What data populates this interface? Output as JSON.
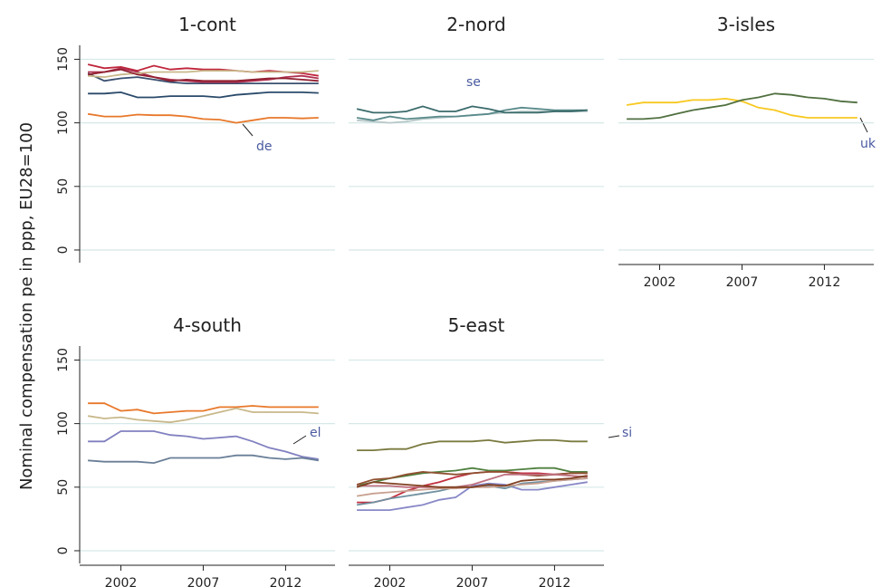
{
  "chart_data": [
    {
      "type": "line",
      "title": "1-cont",
      "ylabel": "Nominal compensation pe in ppp, EU28=100",
      "yaxis": true,
      "x": [
        2000,
        2001,
        2002,
        2003,
        2004,
        2005,
        2006,
        2007,
        2008,
        2009,
        2010,
        2011,
        2012,
        2013,
        2014
      ],
      "xlim": [
        1999.5,
        2015
      ],
      "ylim": [
        -10,
        161
      ],
      "yticks": [
        0,
        50,
        100,
        150
      ],
      "grid": true,
      "series": [
        {
          "name": "de",
          "color": "#e8782a",
          "values": [
            107,
            105,
            105,
            106.5,
            106,
            106,
            105,
            103,
            102.5,
            100,
            102,
            104,
            104,
            103.5,
            104
          ]
        },
        {
          "color": "#2a4a6a",
          "values": [
            123,
            123,
            124,
            120,
            120,
            121,
            121,
            121,
            120,
            122,
            123,
            124,
            124,
            124,
            123.5
          ]
        },
        {
          "color": "#3a5070",
          "values": [
            139,
            133,
            135,
            136,
            134,
            132,
            131,
            131,
            131,
            131,
            131,
            131,
            131,
            131,
            131
          ]
        },
        {
          "color": "#c0263c",
          "values": [
            146,
            143,
            144,
            141,
            145,
            142,
            143,
            142,
            142,
            141,
            140,
            141,
            140,
            139,
            137
          ]
        },
        {
          "color": "#b03050",
          "values": [
            140,
            140,
            143,
            140,
            136,
            134,
            133,
            132,
            132,
            132,
            133,
            134,
            136,
            137,
            135
          ]
        },
        {
          "color": "#c8b88a",
          "values": [
            137,
            136,
            138,
            139,
            140,
            140,
            140,
            141,
            141,
            141,
            140,
            140,
            140,
            140,
            141
          ]
        },
        {
          "color": "#902030",
          "values": [
            138,
            140,
            142,
            138,
            136,
            133,
            134,
            133,
            133,
            133,
            134,
            135,
            135,
            134,
            133
          ]
        }
      ]
    },
    {
      "type": "line",
      "title": "2-nord",
      "yaxis": false,
      "x": [
        2000,
        2001,
        2002,
        2003,
        2004,
        2005,
        2006,
        2007,
        2008,
        2009,
        2010,
        2011,
        2012,
        2013,
        2014
      ],
      "xlim": [
        1999.5,
        2015
      ],
      "ylim": [
        -10,
        161
      ],
      "yticks": [
        0,
        50,
        100,
        150
      ],
      "grid": true,
      "series": [
        {
          "color": "#b8c8c8",
          "values": [
            102,
            101,
            100,
            101,
            103,
            104,
            105,
            106,
            107,
            108,
            109,
            109,
            109,
            109,
            109
          ]
        },
        {
          "color": "#5a8a8a",
          "values": [
            104,
            102,
            105,
            103,
            104,
            105,
            105,
            106,
            107,
            110,
            112,
            111,
            110,
            110,
            110
          ]
        },
        {
          "name": "se",
          "color": "#3a6a6a",
          "values": [
            111,
            108,
            108,
            109,
            113,
            109,
            109,
            113,
            111,
            108,
            108,
            108,
            109,
            109,
            110
          ]
        }
      ]
    },
    {
      "type": "line",
      "title": "3-isles",
      "yaxis": false,
      "x": [
        2000,
        2001,
        2002,
        2003,
        2004,
        2005,
        2006,
        2007,
        2008,
        2009,
        2010,
        2011,
        2012,
        2013,
        2014
      ],
      "xlim": [
        1999.5,
        2015
      ],
      "ylim": [
        -10,
        161
      ],
      "yticks": [
        0,
        50,
        100,
        150
      ],
      "xticks": [
        2002,
        2007,
        2012
      ],
      "grid": true,
      "series": [
        {
          "name": "uk",
          "color": "#f8c820",
          "values": [
            114,
            116,
            116,
            116,
            118,
            118,
            119,
            117,
            112,
            110,
            106,
            104,
            104,
            104,
            104
          ]
        },
        {
          "color": "#507040",
          "values": [
            103,
            103,
            104,
            107,
            110,
            112,
            114,
            118,
            120,
            123,
            122,
            120,
            119,
            117,
            116
          ]
        }
      ]
    },
    {
      "type": "line",
      "title": "4-south",
      "yaxis": true,
      "x": [
        2000,
        2001,
        2002,
        2003,
        2004,
        2005,
        2006,
        2007,
        2008,
        2009,
        2010,
        2011,
        2012,
        2013,
        2014
      ],
      "xlim": [
        1999.5,
        2015
      ],
      "ylim": [
        -10,
        161
      ],
      "yticks": [
        0,
        50,
        100,
        150
      ],
      "xticks": [
        2002,
        2007,
        2012
      ],
      "grid": true,
      "series": [
        {
          "color": "#e8782a",
          "values": [
            116,
            116,
            110,
            111,
            108,
            109,
            110,
            110,
            113,
            113,
            114,
            113,
            113,
            113,
            113
          ]
        },
        {
          "color": "#c8b88a",
          "values": [
            106,
            104,
            105,
            103,
            102,
            101,
            103,
            106,
            109,
            112,
            109,
            109,
            109,
            109,
            108
          ]
        },
        {
          "name": "el",
          "color": "#8080c0",
          "values": [
            86,
            86,
            94,
            94,
            94,
            91,
            90,
            88,
            89,
            90,
            86,
            81,
            78,
            74,
            72
          ]
        },
        {
          "color": "#6a7f98",
          "values": [
            71,
            70,
            70,
            70,
            69,
            73,
            73,
            73,
            73,
            75,
            75,
            73,
            72,
            73,
            71
          ]
        }
      ]
    },
    {
      "type": "line",
      "title": "5-east",
      "yaxis": false,
      "x": [
        2000,
        2001,
        2002,
        2003,
        2004,
        2005,
        2006,
        2007,
        2008,
        2009,
        2010,
        2011,
        2012,
        2013,
        2014
      ],
      "xlim": [
        1999.5,
        2015
      ],
      "ylim": [
        -10,
        161
      ],
      "yticks": [
        0,
        50,
        100,
        150
      ],
      "xticks": [
        2002,
        2007,
        2012
      ],
      "grid": true,
      "series": [
        {
          "name": "si",
          "color": "#7a7a40",
          "values": [
            79,
            79,
            80,
            80,
            84,
            86,
            86,
            86,
            87,
            85,
            86,
            87,
            87,
            86,
            86
          ]
        },
        {
          "color": "#508040",
          "values": [
            51,
            54,
            57,
            59,
            61,
            62,
            63,
            65,
            63,
            63,
            64,
            65,
            65,
            62,
            62
          ]
        },
        {
          "color": "#c03040",
          "values": [
            38,
            38,
            41,
            47,
            51,
            54,
            58,
            61,
            62,
            62,
            61,
            61,
            60,
            61,
            61
          ]
        },
        {
          "color": "#8888c8",
          "values": [
            32,
            32,
            32,
            34,
            36,
            40,
            42,
            51,
            53,
            52,
            48,
            48,
            50,
            52,
            54
          ]
        },
        {
          "color": "#905030",
          "values": [
            52,
            56,
            57,
            60,
            62,
            61,
            60,
            61,
            62,
            62,
            60,
            59,
            60,
            61,
            61
          ]
        },
        {
          "color": "#c07080",
          "values": [
            51,
            51,
            51,
            50,
            50,
            50,
            50,
            52,
            56,
            60,
            60,
            60,
            60,
            59,
            58
          ]
        },
        {
          "color": "#7090a0",
          "values": [
            36,
            38,
            41,
            43,
            45,
            47,
            50,
            50,
            51,
            49,
            53,
            54,
            55,
            56,
            57
          ]
        },
        {
          "color": "#c8a090",
          "values": [
            43,
            45,
            46,
            47,
            48,
            49,
            49,
            50,
            50,
            51,
            52,
            53,
            55,
            56,
            57
          ]
        },
        {
          "color": "#804020",
          "values": [
            50,
            54,
            53,
            52,
            51,
            50,
            50,
            50,
            52,
            51,
            55,
            56,
            56,
            57,
            59
          ]
        }
      ]
    }
  ]
}
